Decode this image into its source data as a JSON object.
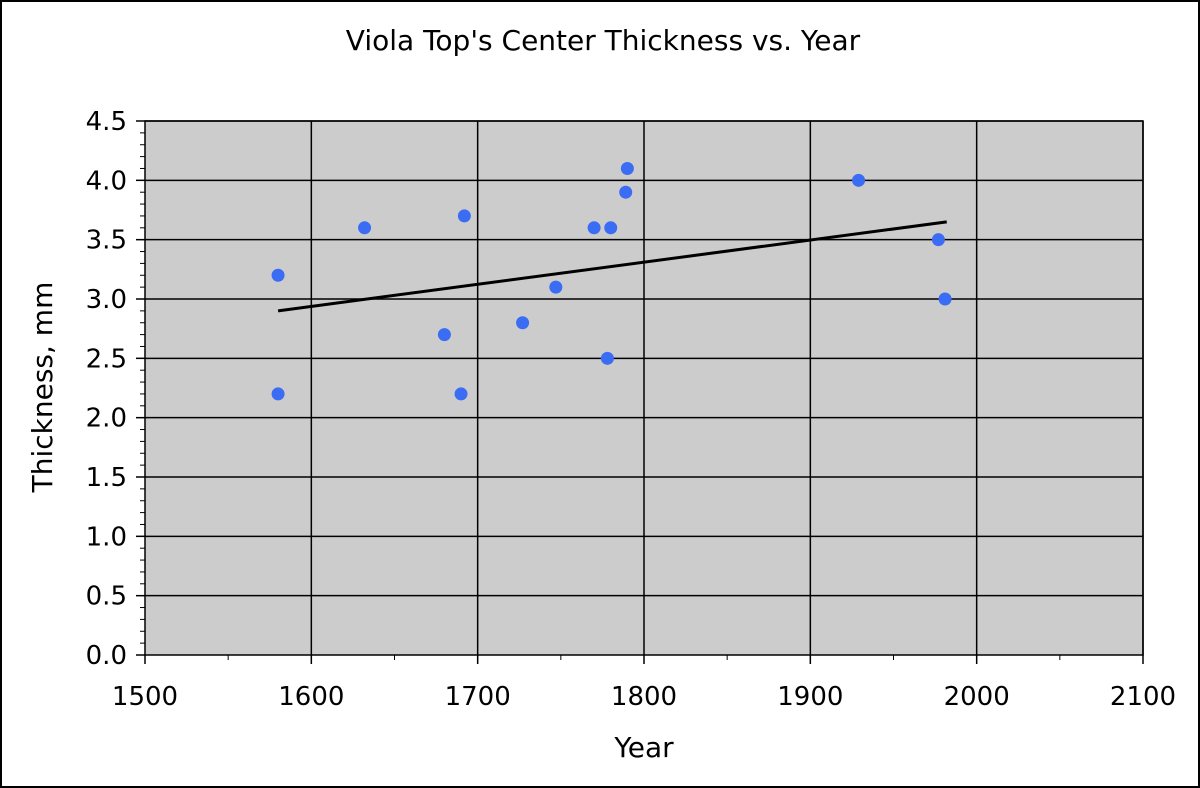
{
  "chart_data": {
    "type": "scatter",
    "title": "Viola Top's Center Thickness vs. Year",
    "xlabel": "Year",
    "ylabel": "Thickness, mm",
    "xlim": [
      1500,
      2100
    ],
    "ylim": [
      0,
      4.5
    ],
    "x_ticks": [
      "1500",
      "1600",
      "1700",
      "1800",
      "1900",
      "2000",
      "2100"
    ],
    "y_ticks": [
      "0.0",
      "0.5",
      "1.0",
      "1.5",
      "2.0",
      "2.5",
      "3.0",
      "3.5",
      "4.0",
      "4.5"
    ],
    "grid": true,
    "legend": "none",
    "series": [
      {
        "color": "#3a6cf4",
        "points": [
          {
            "x": 1580,
            "y": 3.2
          },
          {
            "x": 1580,
            "y": 2.2
          },
          {
            "x": 1632,
            "y": 3.6
          },
          {
            "x": 1680,
            "y": 2.7
          },
          {
            "x": 1690,
            "y": 2.2
          },
          {
            "x": 1692,
            "y": 3.7
          },
          {
            "x": 1727,
            "y": 2.8
          },
          {
            "x": 1747,
            "y": 3.1
          },
          {
            "x": 1770,
            "y": 3.6
          },
          {
            "x": 1778,
            "y": 2.5
          },
          {
            "x": 1780,
            "y": 3.6
          },
          {
            "x": 1789,
            "y": 3.9
          },
          {
            "x": 1790,
            "y": 4.1
          },
          {
            "x": 1929,
            "y": 4.0
          },
          {
            "x": 1977,
            "y": 3.5
          },
          {
            "x": 1981,
            "y": 3.0
          }
        ]
      }
    ],
    "trendline": {
      "type": "linear",
      "x": [
        1580,
        1982
      ],
      "y": [
        2.9,
        3.65
      ],
      "color": "#000000"
    }
  },
  "colors": {
    "plot_background": "#cccccc",
    "gridline": "#000000",
    "marker": "#3a6cf4",
    "trendline": "#000000",
    "border": "#000000"
  }
}
